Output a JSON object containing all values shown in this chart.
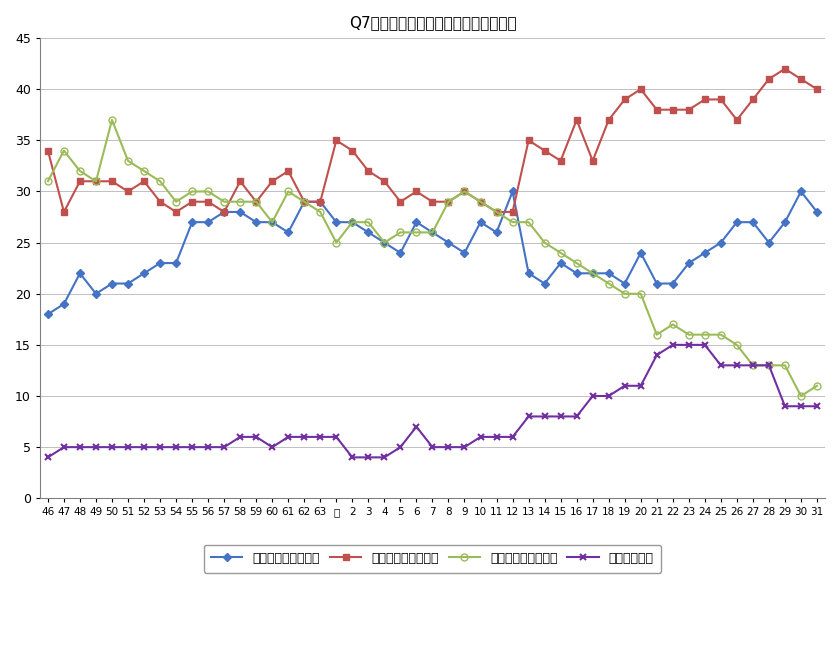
{
  "title": "Q7．働く目的（主な項目の経年変化）",
  "xlabels": [
    "46",
    "47",
    "48",
    "49",
    "50",
    "51",
    "52",
    "53",
    "54",
    "55",
    "56",
    "57",
    "58",
    "59",
    "60",
    "61",
    "62",
    "63",
    "元",
    "2",
    "3",
    "4",
    "5",
    "6",
    "7",
    "8",
    "9",
    "10",
    "11",
    "12",
    "13",
    "14",
    "15",
    "16",
    "17",
    "18",
    "19",
    "20",
    "21",
    "22",
    "23",
    "24",
    "25",
    "26",
    "27",
    "28",
    "29",
    "30",
    "31"
  ],
  "ylim": [
    0,
    45
  ],
  "yticks": [
    0,
    5,
    10,
    15,
    20,
    25,
    30,
    35,
    40,
    45
  ],
  "series": {
    "経済的に豊かになる": {
      "color": "#4472C4",
      "marker": "D",
      "markersize": 4,
      "values": [
        18,
        19,
        22,
        20,
        21,
        21,
        22,
        23,
        23,
        27,
        27,
        28,
        28,
        27,
        27,
        26,
        29,
        29,
        27,
        27,
        26,
        25,
        24,
        27,
        26,
        25,
        24,
        27,
        26,
        30,
        22,
        21,
        23,
        22,
        22,
        22,
        21,
        24,
        21,
        21,
        23,
        24,
        25,
        27,
        27,
        25,
        27,
        30,
        28
      ]
    },
    "楽しい生活をしたい": {
      "color": "#C0504D",
      "marker": "s",
      "markersize": 4,
      "values": [
        34,
        28,
        31,
        31,
        31,
        30,
        31,
        29,
        28,
        29,
        29,
        28,
        31,
        29,
        31,
        32,
        29,
        29,
        35,
        34,
        32,
        31,
        29,
        30,
        29,
        29,
        30,
        29,
        28,
        28,
        35,
        34,
        33,
        37,
        33,
        37,
        39,
        40,
        38,
        38,
        38,
        39,
        39,
        37,
        39,
        41,
        42,
        41,
        40
      ]
    },
    "自分の能力をためす": {
      "color": "#9BBB59",
      "marker": "o",
      "markersize": 5,
      "markerfacecolor": "none",
      "values": [
        31,
        34,
        32,
        31,
        37,
        33,
        32,
        31,
        29,
        30,
        30,
        29,
        29,
        29,
        27,
        30,
        29,
        28,
        25,
        27,
        27,
        25,
        26,
        26,
        26,
        29,
        30,
        29,
        28,
        27,
        27,
        25,
        24,
        23,
        22,
        21,
        20,
        20,
        16,
        17,
        16,
        16,
        16,
        15,
        13,
        13,
        13,
        10,
        11
      ]
    },
    "社会に役立つ": {
      "color": "#7030A0",
      "marker": "x",
      "markersize": 5,
      "markeredgewidth": 1.5,
      "values": [
        4,
        5,
        5,
        5,
        5,
        5,
        5,
        5,
        5,
        5,
        5,
        5,
        6,
        6,
        5,
        6,
        6,
        6,
        6,
        4,
        4,
        4,
        5,
        7,
        5,
        5,
        5,
        6,
        6,
        6,
        8,
        8,
        8,
        8,
        10,
        10,
        11,
        11,
        14,
        15,
        15,
        15,
        13,
        13,
        13,
        13,
        9,
        9,
        9
      ]
    }
  },
  "legend_labels": [
    "経済的に豊かになる",
    "楽しい生活をしたい",
    "自分の能力をためす",
    "社会に役立つ"
  ],
  "background_color": "#FFFFFF",
  "grid_color": "#C0C0C0",
  "linewidth": 1.5
}
